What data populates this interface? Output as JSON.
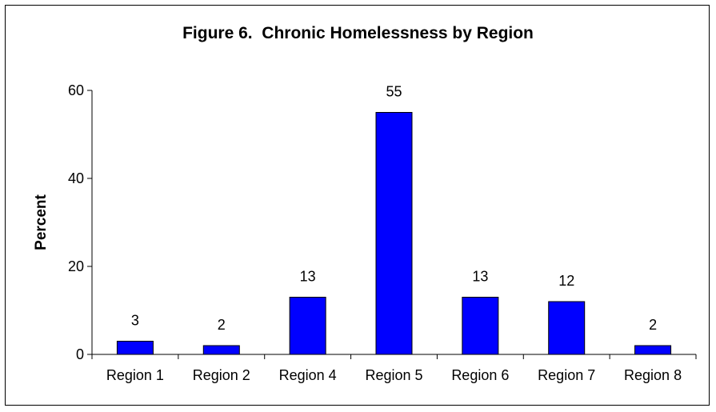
{
  "chart_data": {
    "type": "bar",
    "title": "Figure 6.  Chronic Homelessness by Region",
    "xlabel": "",
    "ylabel": "Percent",
    "categories": [
      "Region 1",
      "Region 2",
      "Region 4",
      "Region 5",
      "Region 6",
      "Region 7",
      "Region 8"
    ],
    "values": [
      3,
      2,
      13,
      55,
      13,
      12,
      2
    ],
    "data_labels": [
      "3",
      "2",
      "13",
      "55",
      "13",
      "12",
      "2"
    ],
    "ylim": [
      0,
      60
    ],
    "yticks": [
      0,
      20,
      40,
      60
    ],
    "ytick_labels": [
      "0",
      "20",
      "40",
      "60"
    ],
    "grid": false,
    "legend": "none",
    "colors": {
      "bar_fill": "#0000ff",
      "bar_stroke": "#000000",
      "axis": "#000000",
      "frame": "#000000"
    }
  }
}
